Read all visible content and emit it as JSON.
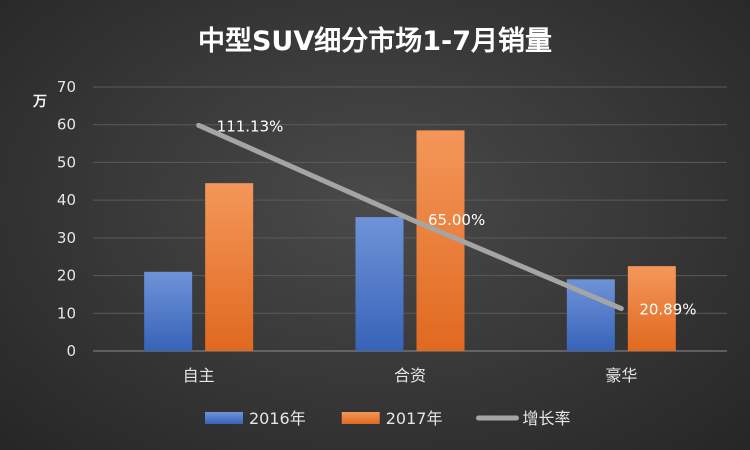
{
  "chart_data": {
    "type": "bar",
    "title": "中型SUV细分市场1-7月销量",
    "ylabel": "万",
    "ylim": [
      0,
      70
    ],
    "yticks": [
      0,
      10,
      20,
      30,
      40,
      50,
      60,
      70
    ],
    "grid": true,
    "legend_position": "bottom",
    "categories": [
      "自主",
      "合资",
      "豪华"
    ],
    "series": [
      {
        "name": "2016年",
        "type": "bar",
        "color": "#4472C4",
        "values": [
          21,
          35.5,
          19
        ]
      },
      {
        "name": "2017年",
        "type": "bar",
        "color": "#ED7D31",
        "values": [
          44.5,
          58.5,
          22.5
        ]
      },
      {
        "name": "增长率",
        "type": "line",
        "color": "#A5A5A5",
        "values": [
          111.13,
          65.0,
          20.89
        ],
        "labels": [
          "111.13%",
          "65.00%",
          "20.89%"
        ],
        "secondary_axis": true,
        "secondary_range": [
          0,
          130
        ]
      }
    ]
  }
}
